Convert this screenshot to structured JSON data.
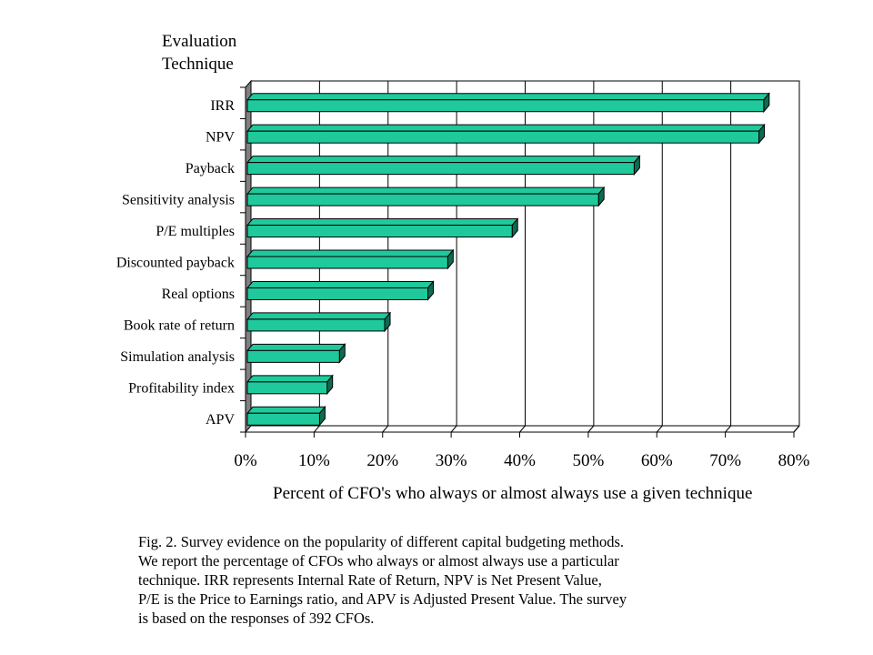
{
  "chart_data": {
    "type": "bar",
    "orientation": "horizontal",
    "ylabel": "Evaluation Technique",
    "ylabel_lines": [
      "Evaluation",
      "Technique"
    ],
    "xlabel": "Percent of CFO's who always or almost always use a given technique",
    "categories": [
      "IRR",
      "NPV",
      "Payback",
      "Sensitivity analysis",
      "P/E multiples",
      "Discounted payback",
      "Real options",
      "Book rate of return",
      "Simulation analysis",
      "Profitability index",
      "APV"
    ],
    "values": [
      75.6,
      74.9,
      56.7,
      51.5,
      38.9,
      29.5,
      26.6,
      20.3,
      13.7,
      11.9,
      10.8
    ],
    "x_ticks": [
      "0%",
      "10%",
      "20%",
      "30%",
      "40%",
      "50%",
      "60%",
      "70%",
      "80%"
    ],
    "xlim": [
      0,
      80
    ],
    "grid": true,
    "bar_color": "#1fc99b",
    "bar_side_color": "#0d6b52",
    "wall_color": "#808080"
  },
  "caption": {
    "lines": [
      "Fig. 2.  Survey evidence on the popularity of different capital budgeting methods.",
      "We report the percentage of CFOs who always or almost always use a particular",
      "technique. IRR represents Internal Rate of Return, NPV is Net Present Value,",
      "P/E is  the Price to Earnings ratio, and APV is Adjusted Present Value. The survey",
      "is based on the responses of 392 CFOs."
    ]
  }
}
